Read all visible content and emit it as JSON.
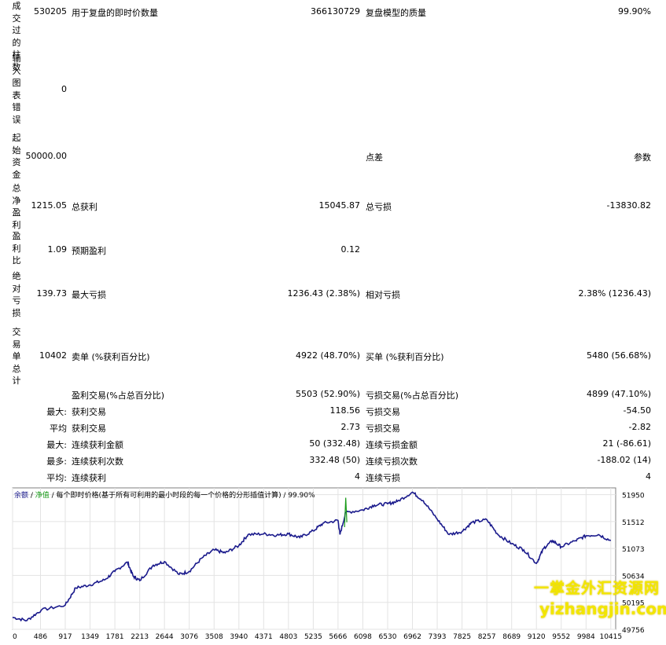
{
  "side_labels": [
    "成交过的柱数",
    "输入图表错误",
    "起始资金",
    "总净盈利",
    "盈利比",
    "绝对亏损",
    "交易单总计"
  ],
  "rows": [
    {
      "v0": "530205",
      "l1": "用于复盘的即时价数量",
      "v1": "366130729",
      "l2": "复盘模型的质量",
      "v2": "99.90%"
    },
    {
      "v0": "0",
      "l1": "",
      "v1": "",
      "l2": "",
      "v2": ""
    },
    {
      "v0": "50000.00",
      "l1": "",
      "v1": "",
      "l2": "点差",
      "v2": "参数"
    },
    {
      "v0": "1215.05",
      "l1": "总获利",
      "v1": "15045.87",
      "l2": "总亏损",
      "v2": "-13830.82"
    },
    {
      "v0": "1.09",
      "l1": "预期盈利",
      "v1": "0.12",
      "l2": "",
      "v2": ""
    },
    {
      "v0": "139.73",
      "l1": "最大亏损",
      "v1": "1236.43 (2.38%)",
      "l2": "相对亏损",
      "v2": "2.38% (1236.43)"
    },
    {
      "v0": "10402",
      "l1": "卖单 (%获利百分比)",
      "v1": "4922 (48.70%)",
      "l2": "买单 (%获利百分比)",
      "v2": "5480 (56.68%)"
    },
    {
      "v0": "",
      "l1": "盈利交易(%占总百分比)",
      "v1": "5503 (52.90%)",
      "l2": "亏损交易(%占总百分比)",
      "v2": "4899 (47.10%)"
    },
    {
      "v0": "最大:",
      "l1": "获利交易",
      "v1": "118.56",
      "l2": "亏损交易",
      "v2": "-54.50"
    },
    {
      "v0": "平均",
      "l1": "获利交易",
      "v1": "2.73",
      "l2": "亏损交易",
      "v2": "-2.82"
    },
    {
      "v0": "最大:",
      "l1": "连续获利金额",
      "v1": "50 (332.48)",
      "l2": "连续亏损金额",
      "v2": "21 (-86.61)"
    },
    {
      "v0": "最多:",
      "l1": "连续获利次数",
      "v1": "332.48 (50)",
      "l2": "连续亏损次数",
      "v2": "-188.02 (14)"
    },
    {
      "v0": "平均:",
      "l1": "连续获利",
      "v1": "4",
      "l2": "连续亏损",
      "v2": "4"
    }
  ],
  "chart": {
    "legend_balance": "余额",
    "legend_sep1": " / ",
    "legend_equity": "净值",
    "legend_rest": " / 每个即时价格(基于所有可利用的最小时段的每一个价格的分形插值计算) / 99.90%",
    "balance_color": "#1a1a8c",
    "equity_color": "#1a9b1a"
  },
  "chart_data": {
    "type": "line",
    "title": "",
    "x_ticks": [
      "0",
      "486",
      "917",
      "1349",
      "1781",
      "2213",
      "2644",
      "3076",
      "3508",
      "3940",
      "4371",
      "4803",
      "5235",
      "5666",
      "6098",
      "6530",
      "6962",
      "7393",
      "7825",
      "8257",
      "8689",
      "9120",
      "9552",
      "9984",
      "10415"
    ],
    "y_ticks": [
      "51950",
      "51512",
      "51073",
      "50634",
      "50195",
      "49756"
    ],
    "xlim": [
      0,
      10500
    ],
    "ylim": [
      49756,
      52060
    ],
    "grid": true,
    "series": [
      {
        "name": "余额",
        "points": [
          [
            0,
            49950
          ],
          [
            250,
            49900
          ],
          [
            500,
            50070
          ],
          [
            917,
            50150
          ],
          [
            1100,
            50430
          ],
          [
            1349,
            50480
          ],
          [
            1600,
            50560
          ],
          [
            1781,
            50700
          ],
          [
            2000,
            50850
          ],
          [
            2100,
            50620
          ],
          [
            2213,
            50550
          ],
          [
            2450,
            50800
          ],
          [
            2644,
            50860
          ],
          [
            2900,
            50650
          ],
          [
            3076,
            50700
          ],
          [
            3300,
            50920
          ],
          [
            3508,
            51050
          ],
          [
            3700,
            51000
          ],
          [
            3940,
            51120
          ],
          [
            4100,
            51300
          ],
          [
            4371,
            51310
          ],
          [
            4600,
            51290
          ],
          [
            4803,
            51310
          ],
          [
            5000,
            51250
          ],
          [
            5235,
            51360
          ],
          [
            5400,
            51480
          ],
          [
            5666,
            51530
          ],
          [
            5700,
            51300
          ],
          [
            5800,
            51660
          ],
          [
            6098,
            51700
          ],
          [
            6300,
            51780
          ],
          [
            6530,
            51800
          ],
          [
            6700,
            51840
          ],
          [
            6962,
            51990
          ],
          [
            7150,
            51850
          ],
          [
            7393,
            51550
          ],
          [
            7600,
            51300
          ],
          [
            7825,
            51350
          ],
          [
            8000,
            51500
          ],
          [
            8257,
            51540
          ],
          [
            8450,
            51300
          ],
          [
            8689,
            51150
          ],
          [
            8900,
            51050
          ],
          [
            9120,
            50830
          ],
          [
            9250,
            51080
          ],
          [
            9400,
            51200
          ],
          [
            9552,
            51100
          ],
          [
            9800,
            51200
          ],
          [
            9984,
            51280
          ],
          [
            10200,
            51300
          ],
          [
            10415,
            51200
          ]
        ]
      },
      {
        "name": "净值",
        "points": [
          [
            5780,
            51420
          ],
          [
            5800,
            51900
          ],
          [
            5820,
            51500
          ]
        ]
      }
    ]
  },
  "watermark": {
    "line1": "一掌金外汇资源网",
    "line2": "yizhangjin.com"
  }
}
